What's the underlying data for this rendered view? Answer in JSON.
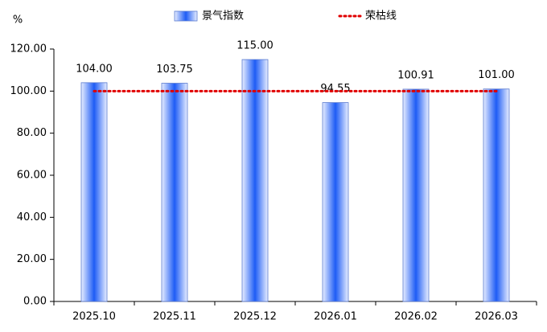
{
  "chart_data": {
    "type": "bar",
    "y_label": "%",
    "categories": [
      "2025.10",
      "2025.11",
      "2025.12",
      "2026.01",
      "2026.02",
      "2026.03"
    ],
    "series": [
      {
        "name": "景气指数",
        "type": "bar",
        "color": "#1e5cf5",
        "values": [
          104,
          103.75,
          115,
          94.55,
          100.91,
          101
        ],
        "value_labels": [
          "104.00",
          "103.75",
          "115.00",
          "94.55",
          "100.91",
          "101.00"
        ]
      },
      {
        "name": "荣枯线",
        "type": "line",
        "color": "#e00000",
        "values": [
          100,
          100,
          100,
          100,
          100,
          100
        ]
      }
    ],
    "ylim": [
      0,
      120
    ],
    "yticks": [
      {
        "value": 0,
        "label": "0.00"
      },
      {
        "value": 20,
        "label": "20.00"
      },
      {
        "value": 40,
        "label": "40.00"
      },
      {
        "value": 60,
        "label": "60.00"
      },
      {
        "value": 80,
        "label": "80.00"
      },
      {
        "value": 100,
        "label": "100.00"
      },
      {
        "value": 120,
        "label": "120.00"
      }
    ]
  }
}
